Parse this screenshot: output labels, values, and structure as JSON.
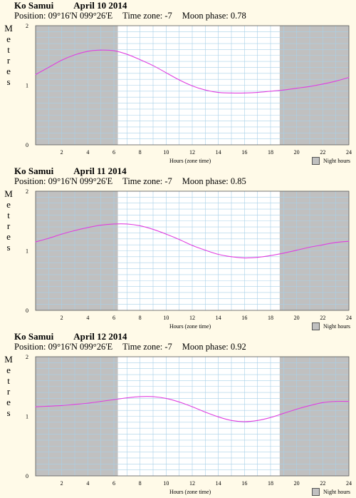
{
  "charts": [
    {
      "location": "Ko Samui",
      "date": "April 10 2014",
      "position": "Position: 09°16'N 099°26'E",
      "timezone": "Time zone: -7",
      "moon": "Moon phase: 0.78"
    },
    {
      "location": "Ko Samui",
      "date": "April 11 2014",
      "position": "Position: 09°16'N 099°26'E",
      "timezone": "Time zone: -7",
      "moon": "Moon phase: 0.85"
    },
    {
      "location": "Ko Samui",
      "date": "April 12 2014",
      "position": "Position: 09°16'N 099°26'E",
      "timezone": "Time zone: -7",
      "moon": "Moon phase: 0.92"
    }
  ],
  "ylabel_letters": [
    "M",
    "e",
    "t",
    "r",
    "e",
    "s"
  ],
  "xlabel": "Hours (zone time)",
  "legend_label": "Night hours",
  "colors": {
    "background": "#fffae8",
    "night": "#c0c0c0",
    "grid": "#a8d0e8",
    "curve": "#e040e0"
  },
  "chart_data": [
    {
      "type": "line",
      "xlim": [
        0,
        24
      ],
      "ylim": [
        0,
        2
      ],
      "xticks": [
        2,
        4,
        6,
        8,
        10,
        12,
        14,
        16,
        18,
        20,
        22,
        24
      ],
      "yticks": [
        0,
        1,
        2
      ],
      "night": [
        [
          0,
          6.3
        ],
        [
          18.7,
          24
        ]
      ],
      "x": [
        0,
        1,
        2,
        3,
        4,
        5,
        6,
        7,
        8,
        9,
        10,
        11,
        12,
        13,
        14,
        15,
        16,
        17,
        18,
        19,
        20,
        21,
        22,
        23,
        24
      ],
      "y": [
        1.18,
        1.3,
        1.42,
        1.51,
        1.57,
        1.59,
        1.58,
        1.52,
        1.43,
        1.33,
        1.21,
        1.09,
        0.99,
        0.92,
        0.88,
        0.87,
        0.87,
        0.88,
        0.9,
        0.92,
        0.95,
        0.98,
        1.02,
        1.07,
        1.13
      ]
    },
    {
      "type": "line",
      "xlim": [
        0,
        24
      ],
      "ylim": [
        0,
        2
      ],
      "xticks": [
        2,
        4,
        6,
        8,
        10,
        12,
        14,
        16,
        18,
        20,
        22,
        24
      ],
      "yticks": [
        0,
        1,
        2
      ],
      "night": [
        [
          0,
          6.3
        ],
        [
          18.7,
          24
        ]
      ],
      "x": [
        0,
        1,
        2,
        3,
        4,
        5,
        6,
        7,
        8,
        9,
        10,
        11,
        12,
        13,
        14,
        15,
        16,
        17,
        18,
        19,
        20,
        21,
        22,
        23,
        24
      ],
      "y": [
        1.15,
        1.21,
        1.28,
        1.34,
        1.39,
        1.43,
        1.45,
        1.45,
        1.42,
        1.36,
        1.28,
        1.19,
        1.09,
        1.01,
        0.94,
        0.9,
        0.88,
        0.89,
        0.92,
        0.96,
        1.01,
        1.06,
        1.1,
        1.14,
        1.16
      ]
    },
    {
      "type": "line",
      "xlim": [
        0,
        24
      ],
      "ylim": [
        0,
        2
      ],
      "xticks": [
        2,
        4,
        6,
        8,
        10,
        12,
        14,
        16,
        18,
        20,
        22,
        24
      ],
      "yticks": [
        0,
        1,
        2
      ],
      "night": [
        [
          0,
          6.3
        ],
        [
          18.7,
          24
        ]
      ],
      "x": [
        0,
        1,
        2,
        3,
        4,
        5,
        6,
        7,
        8,
        9,
        10,
        11,
        12,
        13,
        14,
        15,
        16,
        17,
        18,
        19,
        20,
        21,
        22,
        23,
        24
      ],
      "y": [
        1.16,
        1.17,
        1.18,
        1.2,
        1.22,
        1.25,
        1.28,
        1.31,
        1.33,
        1.33,
        1.3,
        1.24,
        1.16,
        1.07,
        0.99,
        0.93,
        0.91,
        0.93,
        0.98,
        1.05,
        1.12,
        1.18,
        1.23,
        1.25,
        1.25
      ]
    }
  ]
}
